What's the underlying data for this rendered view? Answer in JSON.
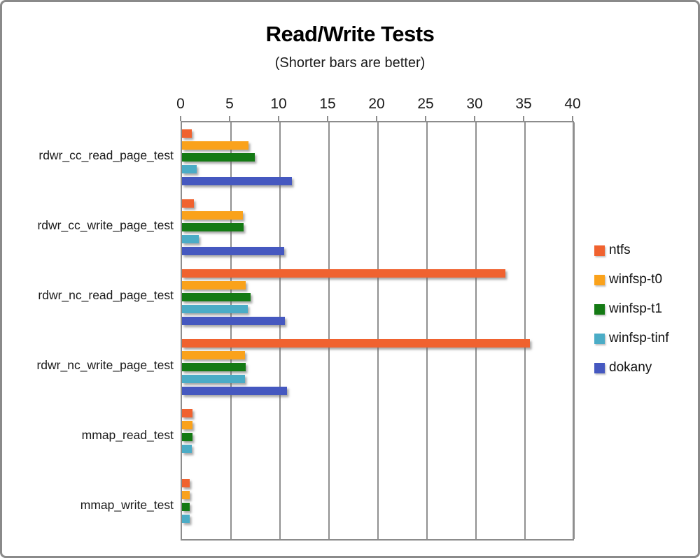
{
  "window": {
    "background": "#FFFFFF",
    "frame_border_color": "#8A8A8A"
  },
  "chart_data": {
    "type": "bar",
    "orientation": "horizontal",
    "title": "Read/Write Tests",
    "subtitle": "(Shorter bars are better)",
    "categories": [
      "rdwr_cc_read_page_test",
      "rdwr_cc_write_page_test",
      "rdwr_nc_read_page_test",
      "rdwr_nc_write_page_test",
      "mmap_read_test",
      "mmap_write_test"
    ],
    "series": [
      {
        "name": "ntfs",
        "color": "#F0622F",
        "values": [
          1.0,
          1.2,
          33.0,
          35.5,
          1.1,
          0.8
        ]
      },
      {
        "name": "winfsp-t0",
        "color": "#FAA21B",
        "values": [
          6.8,
          6.2,
          6.5,
          6.4,
          1.1,
          0.8
        ]
      },
      {
        "name": "winfsp-t1",
        "color": "#147A14",
        "values": [
          7.4,
          6.3,
          7.0,
          6.5,
          1.1,
          0.8
        ]
      },
      {
        "name": "winfsp-tinf",
        "color": "#4BACC6",
        "values": [
          1.5,
          1.7,
          6.7,
          6.4,
          1.0,
          0.8
        ]
      },
      {
        "name": "dokany",
        "color": "#4558C0",
        "values": [
          11.2,
          10.4,
          10.5,
          10.7,
          0,
          0
        ]
      }
    ],
    "x_axis": {
      "min": 0,
      "max": 40,
      "tick_step": 5,
      "ticks": [
        "0",
        "5",
        "10",
        "15",
        "20",
        "25",
        "30",
        "35",
        "40"
      ],
      "position": "top"
    },
    "grid": true,
    "gridline_color": "#909090",
    "legend_position": "right"
  }
}
